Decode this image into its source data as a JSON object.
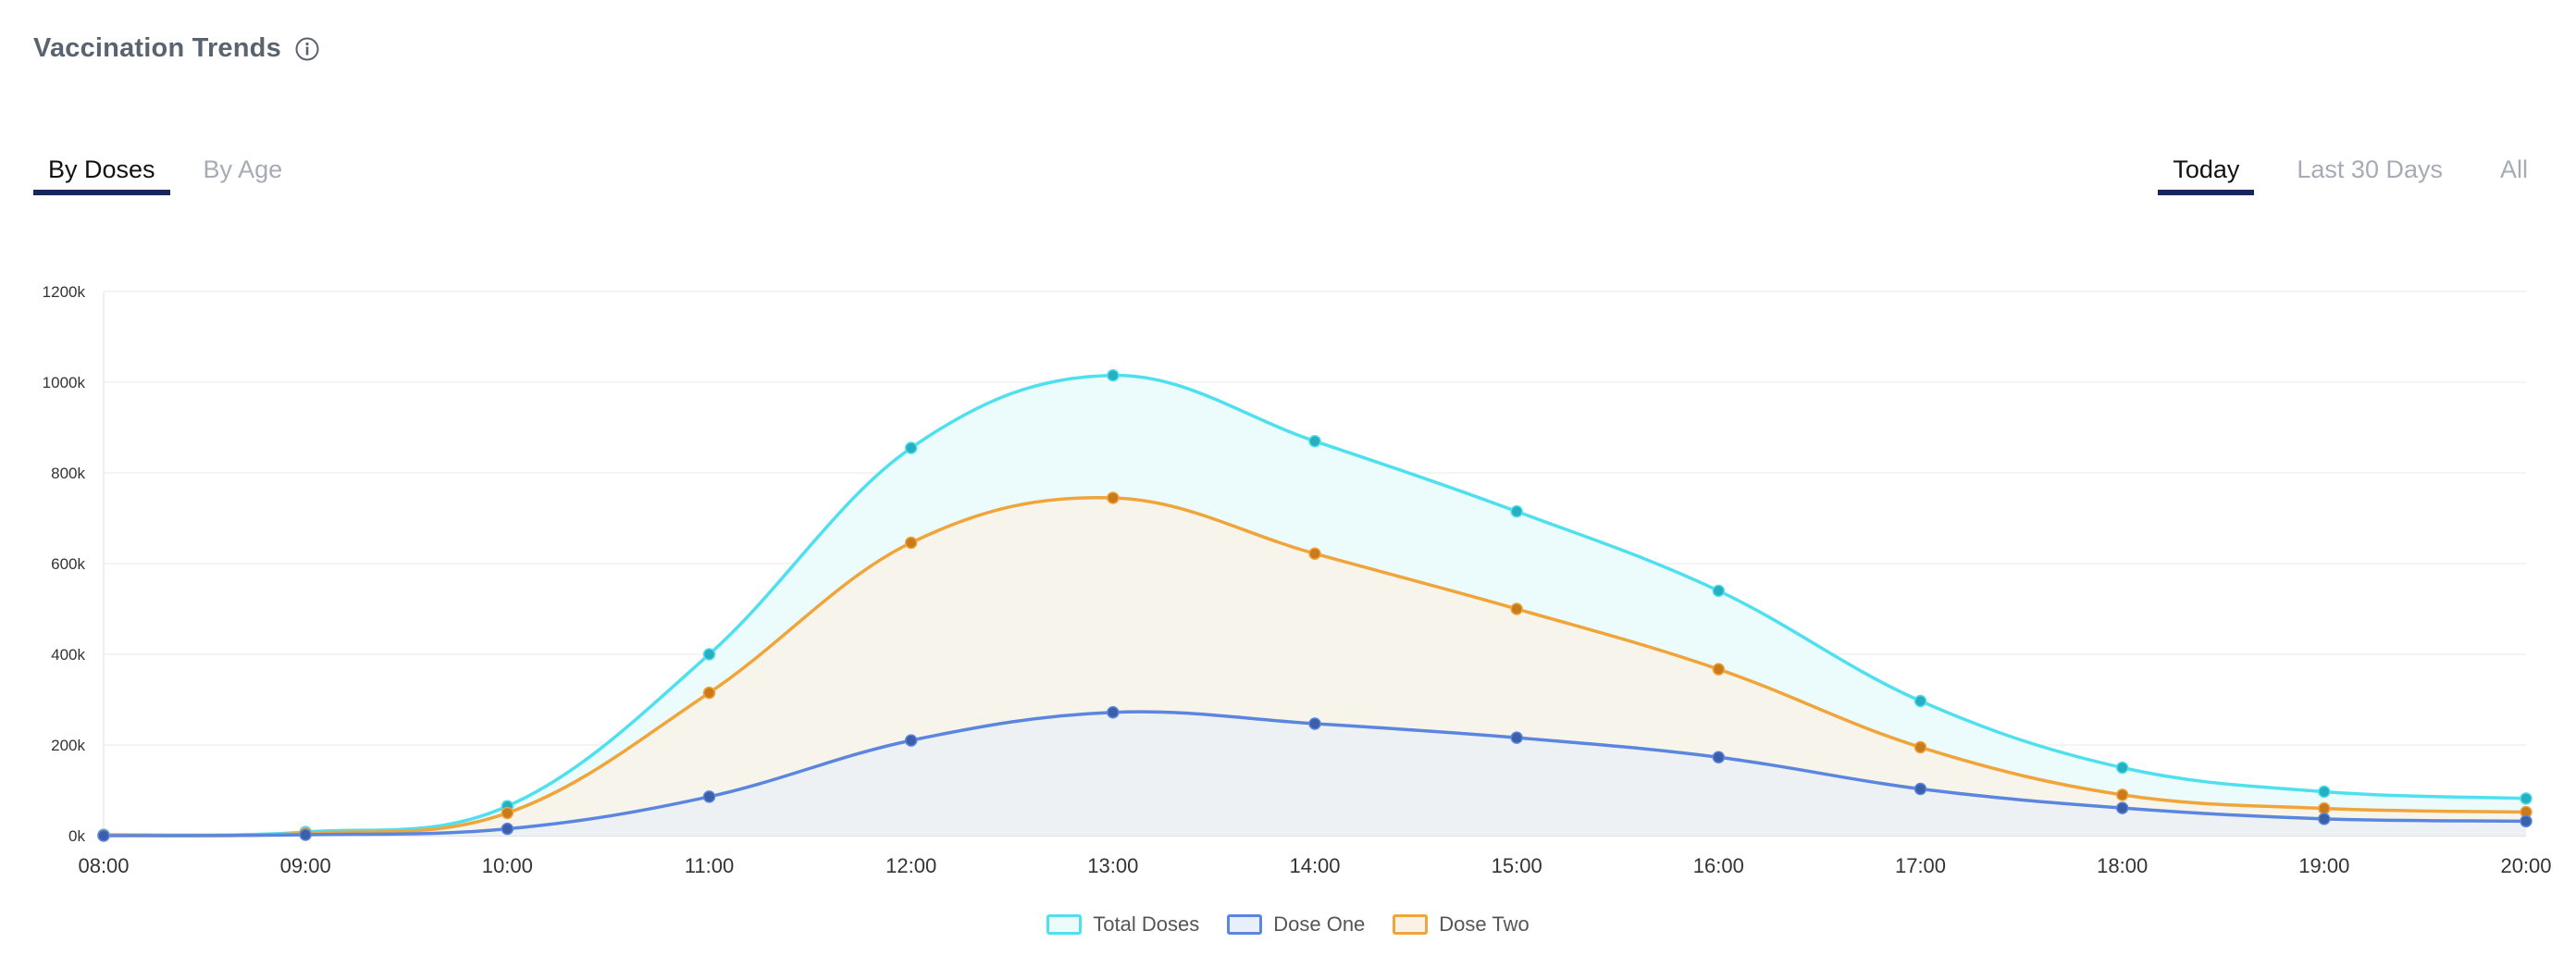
{
  "header": {
    "title": "Vaccination Trends",
    "info_icon": "info-circle-icon"
  },
  "view_tabs": [
    {
      "label": "By Doses",
      "active": true
    },
    {
      "label": "By Age",
      "active": false
    }
  ],
  "range_tabs": [
    {
      "label": "Today",
      "active": true
    },
    {
      "label": "Last 30 Days",
      "active": false
    },
    {
      "label": "All",
      "active": false
    }
  ],
  "colors": {
    "total": "#4fe0f0",
    "total_fill": "#ecfbfc",
    "total_dot": "#27aebf",
    "dose_one": "#5b86e0",
    "dose_one_fill": "#e8eefa",
    "dose_one_dot": "#3b5fa8",
    "dose_two": "#f0a43a",
    "dose_two_fill": "#fbf1e6",
    "dose_two_dot": "#c97a1a",
    "tab_underline": "#16285a"
  },
  "chart_data": {
    "type": "area",
    "x": [
      "08:00",
      "09:00",
      "10:00",
      "11:00",
      "12:00",
      "13:00",
      "14:00",
      "15:00",
      "16:00",
      "17:00",
      "18:00",
      "19:00",
      "20:00"
    ],
    "yticks": [
      "0k",
      "200k",
      "400k",
      "600k",
      "800k",
      "1000k",
      "1200k"
    ],
    "ylim": [
      0,
      1200000
    ],
    "grid": true,
    "legend_position": "bottom-center",
    "series": [
      {
        "name": "Total Doses",
        "values": [
          2000,
          8000,
          65000,
          400000,
          855000,
          1015000,
          870000,
          715000,
          540000,
          297000,
          150000,
          97000,
          82000
        ]
      },
      {
        "name": "Dose One",
        "values": [
          0,
          2000,
          15000,
          86000,
          210000,
          272000,
          247000,
          216000,
          173000,
          103000,
          61000,
          37000,
          32000
        ]
      },
      {
        "name": "Dose Two",
        "values": [
          1000,
          5000,
          50000,
          315000,
          646000,
          745000,
          622000,
          500000,
          367000,
          195000,
          90000,
          60000,
          52000
        ]
      }
    ]
  }
}
